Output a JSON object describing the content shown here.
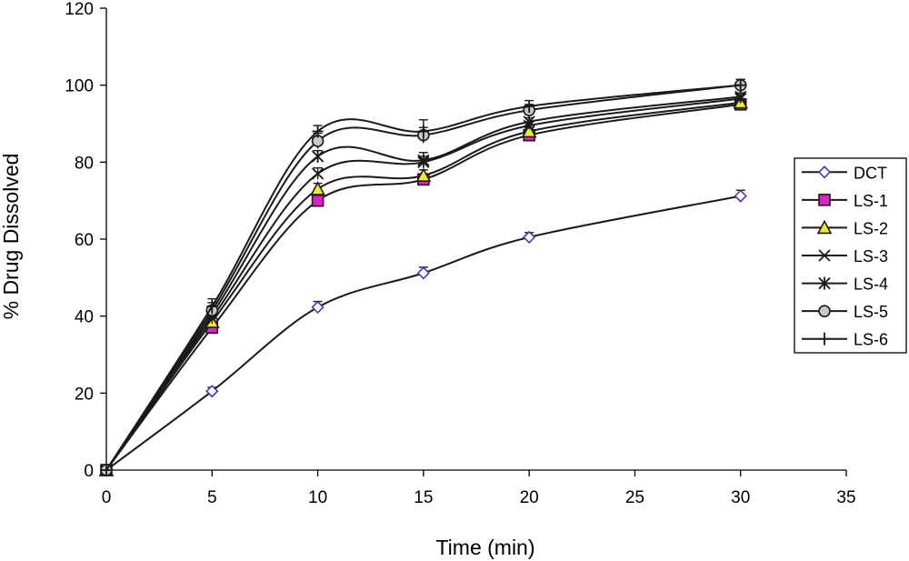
{
  "chart_data": {
    "type": "line",
    "xlabel": "Time (min)",
    "ylabel": "% Drug Dissolved",
    "xlim": [
      0,
      35
    ],
    "ylim": [
      0,
      120
    ],
    "x_ticks": [
      0,
      5,
      10,
      15,
      20,
      25,
      30,
      35
    ],
    "y_ticks": [
      0,
      20,
      40,
      60,
      80,
      100,
      120
    ],
    "grid": false,
    "legend_position": "right",
    "x": [
      0,
      5,
      10,
      15,
      20,
      30
    ],
    "series": [
      {
        "name": "DCT",
        "marker": "diamond",
        "color": "#3b3bbf",
        "fill": "#ffffff",
        "values": [
          0,
          20.5,
          42.3,
          51.2,
          60.5,
          71.2
        ],
        "error": [
          0,
          1.0,
          1.5,
          1.5,
          1.2,
          1.5
        ]
      },
      {
        "name": "LS-1",
        "marker": "square",
        "color": "#1a1a1a",
        "fill": "#e020c8",
        "values": [
          0,
          37.0,
          70.0,
          75.5,
          87.0,
          95.0
        ],
        "error": [
          0,
          1.5,
          1.5,
          1.5,
          1.0,
          1.0
        ]
      },
      {
        "name": "LS-2",
        "marker": "triangle",
        "color": "#1a1a1a",
        "fill": "#f2ee1e",
        "values": [
          0,
          38.5,
          73.0,
          76.5,
          88.0,
          95.5
        ],
        "error": [
          0,
          1.5,
          1.5,
          1.5,
          1.0,
          1.0
        ]
      },
      {
        "name": "LS-3",
        "marker": "x",
        "color": "#1a1a1a",
        "fill": "none",
        "values": [
          0,
          39.5,
          77.0,
          80.0,
          89.5,
          96.5
        ],
        "error": [
          0,
          1.5,
          1.5,
          1.5,
          1.0,
          1.0
        ]
      },
      {
        "name": "LS-4",
        "marker": "asterisk",
        "color": "#1a1a1a",
        "fill": "none",
        "values": [
          0,
          40.5,
          81.5,
          80.5,
          90.5,
          97.0
        ],
        "error": [
          0,
          1.5,
          1.5,
          2.0,
          1.0,
          1.0
        ]
      },
      {
        "name": "LS-5",
        "marker": "circle",
        "color": "#1a1a1a",
        "fill": "#c8c8c8",
        "values": [
          0,
          41.5,
          85.5,
          87.0,
          93.5,
          100.0
        ],
        "error": [
          0,
          2.0,
          2.0,
          2.0,
          1.5,
          1.5
        ]
      },
      {
        "name": "LS-6",
        "marker": "plus",
        "color": "#1a1a1a",
        "fill": "none",
        "values": [
          0,
          42.5,
          88.0,
          88.0,
          94.5,
          100.0
        ],
        "error": [
          0,
          2.0,
          1.5,
          3.0,
          1.5,
          1.5
        ]
      }
    ]
  }
}
